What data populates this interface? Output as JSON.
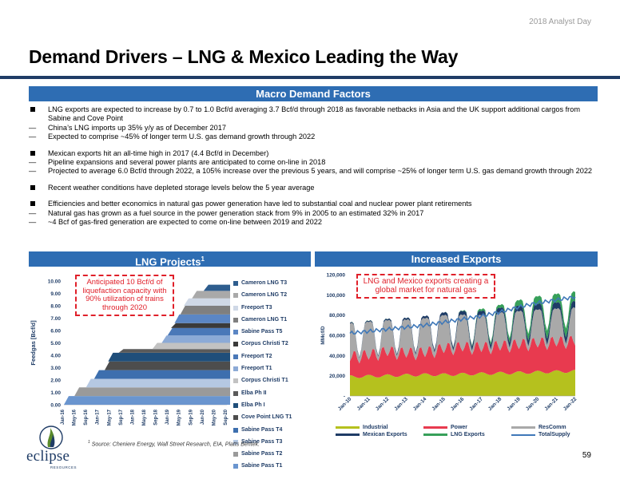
{
  "header": {
    "event": "2018 Analyst Day"
  },
  "title": "Demand Drivers – LNG & Mexico Leading the Way",
  "macro": {
    "heading": "Macro Demand Factors",
    "bullets": [
      {
        "text": "LNG exports are expected to increase by 0.7 to 1.0 Bcf/d averaging 3.7 Bcf/d through 2018 as favorable netbacks in Asia and the UK support additional cargos from Sabine and Cove Point",
        "subs": [
          "China’s LNG imports up 35% y/y as of December 2017",
          "Expected to comprise ~45% of longer term U.S. gas demand growth through 2022"
        ]
      },
      {
        "text": "Mexican exports hit an all-time high in 2017 (4.4 Bcf/d in December)",
        "subs": [
          "Pipeline expansions and several power plants are anticipated to come on-line in 2018",
          "Projected to average 6.0 Bcf/d through 2022, a 105% increase over the previous 5 years, and will comprise ~25% of longer term U.S. gas demand growth through 2022"
        ]
      },
      {
        "text": "Recent weather conditions have depleted storage levels below the 5 year average",
        "subs": []
      },
      {
        "text": "Efficiencies and better economics in natural gas power generation have led to substantial coal and nuclear power plant retirements",
        "subs": [
          "Natural gas has grown as a fuel source in the power generation stack from 9% in 2005 to an estimated 32% in 2017",
          "~4 Bcf of gas-fired generation are expected to come on-line between 2019 and 2022"
        ]
      }
    ],
    "dash": "—"
  },
  "lng": {
    "heading": "LNG Projects",
    "heading_sup": "1",
    "callout": "Anticipated 10 Bcf/d of liquefaction capacity with 90% utilization of trains through 2020",
    "ylabel": "Feedgas [Bcf/d]"
  },
  "exports": {
    "heading": "Increased Exports",
    "callout": "LNG and Mexico exports creating a global market for natural gas",
    "ylabel": "MMcf/D"
  },
  "footnote": "Source:  Cheniere Energy, Wall Street Research, EIA, Platts Bentek.",
  "footnote_sup": "1",
  "logo": {
    "name": "eclipse",
    "sub": "RESOURCES"
  },
  "page_number": "59",
  "colors": {
    "navy": "#1f3c66",
    "blue_bar": "#2e6db3",
    "red": "#e0202a",
    "industrial": "#b5c11e",
    "power": "#e83a4f",
    "rescomm": "#a9a9a9",
    "mexico": "#1f3c66",
    "lng": "#37a05a",
    "total": "#3f78b8"
  },
  "chart_data": [
    {
      "type": "area",
      "title": "LNG Projects",
      "ylabel": "Feedgas [Bcf/d]",
      "x": [
        "Jan-16",
        "May-16",
        "Sep-16",
        "Jan-17",
        "May-17",
        "Sep-17",
        "Jan-18",
        "May-18",
        "Sep-18",
        "Jan-19",
        "May-19",
        "Sep-19",
        "Jan-20",
        "May-20",
        "Sep-20"
      ],
      "ylim": [
        0,
        10
      ],
      "yticks": [
        "0.00",
        "1.00",
        "2.00",
        "3.00",
        "4.00",
        "5.00",
        "6.00",
        "7.00",
        "8.00",
        "9.00",
        "10.00"
      ],
      "legend_position": "right",
      "series": [
        {
          "name": "Cameron LNG T3",
          "color": "#2e5d8e"
        },
        {
          "name": "Cameron LNG T2",
          "color": "#a9a9a9"
        },
        {
          "name": "Freeport T3",
          "color": "#cfd8e6"
        },
        {
          "name": "Cameron LNG T1",
          "color": "#7f7f7f"
        },
        {
          "name": "Sabine Pass T5",
          "color": "#5b86c4"
        },
        {
          "name": "Corpus Christi T2",
          "color": "#3a3a3a"
        },
        {
          "name": "Freeport T2",
          "color": "#4a78b8"
        },
        {
          "name": "Freeport T1",
          "color": "#8caad6"
        },
        {
          "name": "Corpus Christi T1",
          "color": "#c2c2c2"
        },
        {
          "name": "Elba Ph II",
          "color": "#5a5a5a"
        },
        {
          "name": "Elba Ph I",
          "color": "#1f4e7a"
        },
        {
          "name": "Cove Point LNG T1",
          "color": "#4d4d4d"
        },
        {
          "name": "Sabine Pass T4",
          "color": "#3d6fae"
        },
        {
          "name": "Sabine Pass T3",
          "color": "#b5c8e2"
        },
        {
          "name": "Sabine Pass T2",
          "color": "#9a9a9a"
        },
        {
          "name": "Sabine Pass T1",
          "color": "#6a95cf"
        }
      ],
      "steps": [
        {
          "series": "Sabine Pass T1",
          "start": 0.0,
          "to": 0.7
        },
        {
          "series": "Sabine Pass T2",
          "start": 0.9,
          "to": 1.4
        },
        {
          "series": "Sabine Pass T3",
          "start": 1.9,
          "to": 2.1
        },
        {
          "series": "Sabine Pass T4",
          "start": 2.6,
          "to": 2.8
        },
        {
          "series": "Cove Point LNG T1",
          "start": 3.5,
          "to": 3.5
        },
        {
          "series": "Elba Ph I",
          "start": 3.8,
          "to": 4.2
        },
        {
          "series": "Elba Ph II",
          "start": 4.7,
          "to": 4.5
        },
        {
          "series": "Corpus Christi T1",
          "start": 7.6,
          "to": 5.0
        },
        {
          "series": "Freeport T1",
          "start": 8.4,
          "to": 5.6
        },
        {
          "series": "Freeport T2",
          "start": 8.9,
          "to": 6.2
        },
        {
          "series": "Corpus Christi T2",
          "start": 9.2,
          "to": 6.6
        },
        {
          "series": "Sabine Pass T5",
          "start": 9.5,
          "to": 7.3
        },
        {
          "series": "Cameron LNG T1",
          "start": 10.0,
          "to": 8.0
        },
        {
          "series": "Freeport T3",
          "start": 10.3,
          "to": 8.6
        },
        {
          "series": "Cameron LNG T2",
          "start": 11.0,
          "to": 9.2
        },
        {
          "series": "Cameron LNG T3",
          "start": 12.0,
          "to": 9.7
        }
      ]
    },
    {
      "type": "area",
      "title": "Increased Exports",
      "ylabel": "MMcf/D",
      "x": [
        "Jan-10",
        "Jan-11",
        "Jan-12",
        "Jan-13",
        "Jan-14",
        "Jan-15",
        "Jan-16",
        "Jan-17",
        "Jan-18",
        "Jan-19",
        "Jan-20",
        "Jan-21",
        "Jan-22"
      ],
      "ylim": [
        0,
        120000
      ],
      "yticks": [
        "-",
        "20,000",
        "40,000",
        "60,000",
        "80,000",
        "100,000",
        "120,000"
      ],
      "legend_position": "bottom",
      "series": [
        {
          "name": "Industrial",
          "color": "#b5c11e",
          "values": [
            19000,
            19500,
            20000,
            20500,
            21000,
            21000,
            21500,
            22000,
            22500,
            23000,
            23500,
            24000,
            24500
          ]
        },
        {
          "name": "Power",
          "color": "#e83a4f",
          "values": [
            20000,
            21000,
            24000,
            22000,
            22000,
            26000,
            27000,
            26000,
            27000,
            28000,
            29000,
            29500,
            30000
          ]
        },
        {
          "name": "ResComm",
          "color": "#a9a9a9",
          "values": [
            21000,
            21000,
            19000,
            21000,
            22000,
            21000,
            20000,
            20000,
            21000,
            21000,
            21000,
            21000,
            21000
          ]
        },
        {
          "name": "Mexican Exports",
          "color": "#1f3c66",
          "values": [
            900,
            1000,
            1400,
            1800,
            2100,
            2800,
            3700,
            4200,
            4800,
            5400,
            5800,
            6100,
            6400
          ]
        },
        {
          "name": "LNG Exports",
          "color": "#37a05a",
          "values": [
            100,
            100,
            50,
            50,
            0,
            0,
            400,
            1900,
            3000,
            5500,
            7500,
            8500,
            9500
          ]
        },
        {
          "name": "TotalSupply",
          "color": "#3f78b8",
          "type": "line",
          "values": [
            62000,
            64000,
            66000,
            68000,
            70000,
            73000,
            76000,
            79000,
            83000,
            88000,
            92000,
            95000,
            98000
          ]
        }
      ]
    }
  ]
}
